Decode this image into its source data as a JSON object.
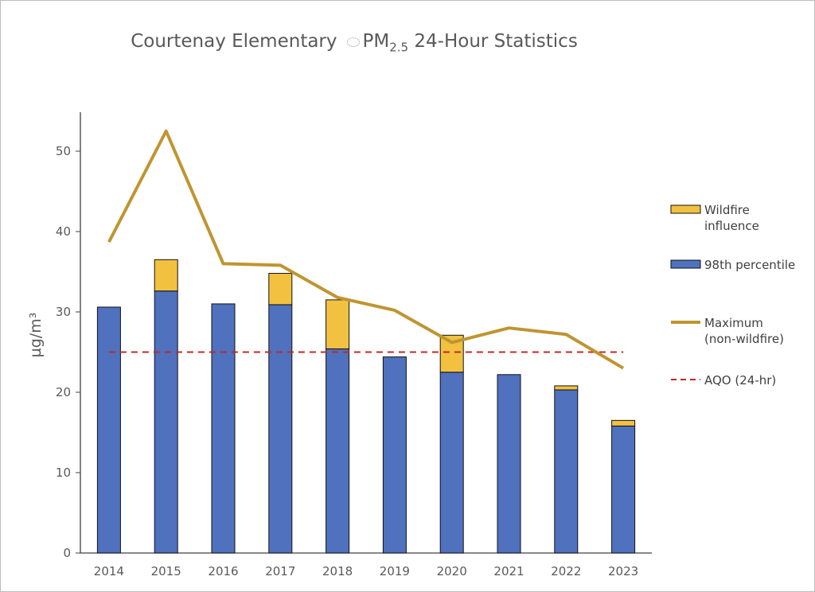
{
  "chart_data": {
    "type": "bar",
    "title": "Courtenay Elementary",
    "title_pollutant": "PM",
    "title_subscript": "2.5",
    "title_rest": "24-Hour Statistics",
    "ylabel": "µg/m³",
    "ylim": [
      0,
      55
    ],
    "yticks": [
      0,
      10,
      20,
      30,
      40,
      50
    ],
    "grid": false,
    "legend_position": "right",
    "categories": [
      "2014",
      "2015",
      "2016",
      "2017",
      "2018",
      "2019",
      "2020",
      "2021",
      "2022",
      "2023"
    ],
    "series": [
      {
        "name": "98th percentile",
        "type": "bar",
        "stacked": true,
        "color": "#4f71be",
        "values": [
          30.6,
          32.6,
          31.0,
          30.9,
          25.4,
          24.4,
          22.5,
          22.2,
          20.3,
          15.8
        ]
      },
      {
        "name": "Wildfire influence",
        "type": "bar",
        "stacked": true,
        "color": "#f2c140",
        "values": [
          0,
          3.9,
          0,
          3.9,
          6.1,
          0,
          4.6,
          0,
          0.5,
          0.7
        ]
      },
      {
        "name": "Maximum (non-wildfire)",
        "legend_lines": [
          "Maximum",
          "(non-wildfire)"
        ],
        "type": "line",
        "color": "#bf9530",
        "values": [
          38.7,
          52.5,
          36.0,
          35.8,
          31.8,
          30.2,
          26.2,
          28.0,
          27.2,
          23.0
        ]
      },
      {
        "name": "AQO (24-hr)",
        "type": "line",
        "dashed": true,
        "color": "#c0282a",
        "value": 25
      }
    ],
    "legend": [
      {
        "lines": [
          "Wildfire",
          "influence"
        ]
      },
      {
        "lines": [
          "98th percentile"
        ]
      },
      {
        "lines": [
          "Maximum",
          "(non-wildfire)"
        ]
      },
      {
        "lines": [
          "AQO (24-hr)"
        ]
      }
    ]
  }
}
